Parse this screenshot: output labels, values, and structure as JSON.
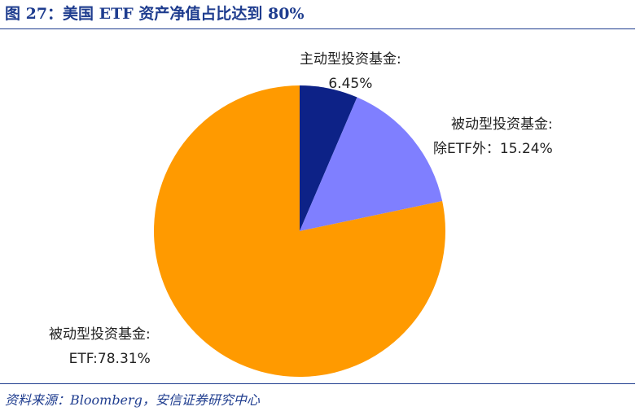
{
  "header": {
    "title": "图 27：美国 ETF 资产净值占比达到 80%"
  },
  "footer": {
    "source": "资料来源：Bloomberg，安信证券研究中心"
  },
  "chart_data": {
    "type": "pie",
    "slices": [
      {
        "label_line1": "主动型投资基金:",
        "label_line2": "6.45%",
        "value": 6.45,
        "color": "#0d2287"
      },
      {
        "label_line1": "被动型投资基金:",
        "label_line2": "除ETF外：15.24%",
        "value": 15.24,
        "color": "#7f7fff"
      },
      {
        "label_line1": "被动型投资基金:",
        "label_line2": "ETF:78.31%",
        "value": 78.31,
        "color": "#ff9a00"
      }
    ],
    "start_angle": "12 o'clock",
    "direction": "clockwise"
  }
}
